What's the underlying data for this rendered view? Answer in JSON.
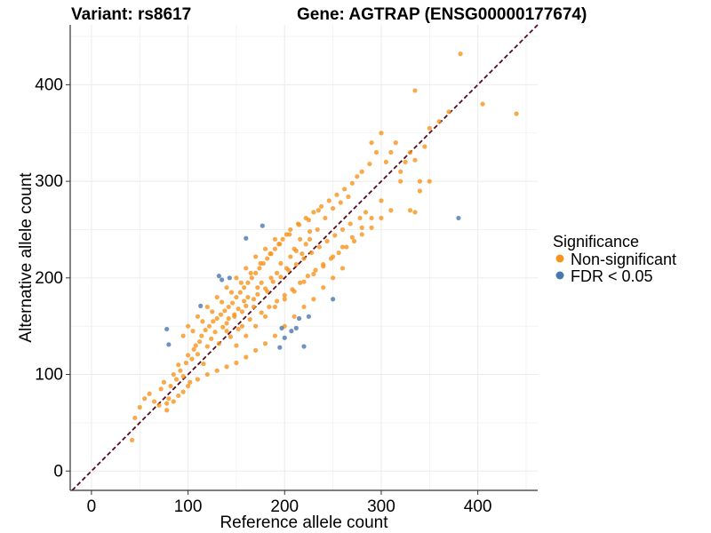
{
  "header": {
    "variant_text": "Variant: rs8617",
    "gene_text": "Gene: AGTRAP (ENSG00000177674)"
  },
  "colors": {
    "non_significant": "#F7941D",
    "significant": "#4A78AE",
    "diagonal": "#5A0A1E",
    "grid": "#EBEBEB",
    "axis": "#333333"
  },
  "chart_data": {
    "type": "scatter",
    "title": "",
    "xlabel": "Reference allele count",
    "ylabel": "Alternative allele count",
    "xlim": [
      -22,
      462
    ],
    "ylim": [
      -20,
      462
    ],
    "xticks": [
      0,
      100,
      200,
      300,
      400
    ],
    "yticks": [
      0,
      100,
      200,
      300,
      400
    ],
    "grid": true,
    "reference_line": {
      "slope": 1,
      "intercept": 0,
      "style": "dashed"
    },
    "legend": {
      "title": "Significance",
      "position": "right",
      "entries": [
        {
          "label": "Non-significant",
          "color": "#F7941D"
        },
        {
          "label": "FDR < 0.05",
          "color": "#4A78AE"
        }
      ]
    },
    "series": [
      {
        "name": "Non-significant",
        "color": "#F7941D",
        "points": [
          [
            42,
            32
          ],
          [
            45,
            55
          ],
          [
            50,
            66
          ],
          [
            55,
            75
          ],
          [
            60,
            80
          ],
          [
            65,
            72
          ],
          [
            70,
            68
          ],
          [
            72,
            85
          ],
          [
            75,
            92
          ],
          [
            78,
            63
          ],
          [
            80,
            75
          ],
          [
            82,
            88
          ],
          [
            85,
            100
          ],
          [
            88,
            95
          ],
          [
            90,
            110
          ],
          [
            92,
            104
          ],
          [
            95,
            98
          ],
          [
            98,
            112
          ],
          [
            100,
            120
          ],
          [
            102,
            92
          ],
          [
            104,
            116
          ],
          [
            106,
            126
          ],
          [
            108,
            130
          ],
          [
            110,
            121
          ],
          [
            112,
            134
          ],
          [
            114,
            140
          ],
          [
            116,
            111
          ],
          [
            118,
            146
          ],
          [
            120,
            129
          ],
          [
            122,
            150
          ],
          [
            124,
            137
          ],
          [
            126,
            155
          ],
          [
            128,
            144
          ],
          [
            130,
            158
          ],
          [
            132,
            132
          ],
          [
            134,
            162
          ],
          [
            136,
            149
          ],
          [
            138,
            166
          ],
          [
            140,
            153
          ],
          [
            142,
            170
          ],
          [
            144,
            139
          ],
          [
            146,
            174
          ],
          [
            148,
            160
          ],
          [
            150,
            180
          ],
          [
            152,
            147
          ],
          [
            154,
            185
          ],
          [
            156,
            165
          ],
          [
            158,
            190
          ],
          [
            160,
            171
          ],
          [
            162,
            195
          ],
          [
            164,
            157
          ],
          [
            166,
            200
          ],
          [
            168,
            178
          ],
          [
            170,
            205
          ],
          [
            172,
            183
          ],
          [
            174,
            210
          ],
          [
            176,
            164
          ],
          [
            178,
            215
          ],
          [
            180,
            189
          ],
          [
            182,
            220
          ],
          [
            184,
            170
          ],
          [
            186,
            225
          ],
          [
            188,
            196
          ],
          [
            190,
            230
          ],
          [
            192,
            176
          ],
          [
            194,
            235
          ],
          [
            196,
            201
          ],
          [
            198,
            240
          ],
          [
            200,
            182
          ],
          [
            202,
            245
          ],
          [
            204,
            208
          ],
          [
            206,
            250
          ],
          [
            208,
            188
          ],
          [
            210,
            230
          ],
          [
            212,
            214
          ],
          [
            214,
            256
          ],
          [
            216,
            195
          ],
          [
            218,
            225
          ],
          [
            220,
            220
          ],
          [
            222,
            262
          ],
          [
            224,
            202
          ],
          [
            226,
            240
          ],
          [
            228,
            226
          ],
          [
            230,
            268
          ],
          [
            232,
            208
          ],
          [
            234,
            250
          ],
          [
            236,
            232
          ],
          [
            238,
            274
          ],
          [
            240,
            214
          ],
          [
            242,
            262
          ],
          [
            244,
            238
          ],
          [
            246,
            280
          ],
          [
            248,
            220
          ],
          [
            250,
            272
          ],
          [
            252,
            244
          ],
          [
            254,
            286
          ],
          [
            256,
            226
          ],
          [
            258,
            278
          ],
          [
            260,
            250
          ],
          [
            262,
            292
          ],
          [
            264,
            232
          ],
          [
            266,
            284
          ],
          [
            268,
            256
          ],
          [
            270,
            298
          ],
          [
            272,
            238
          ],
          [
            275,
            305
          ],
          [
            278,
            262
          ],
          [
            280,
            310
          ],
          [
            284,
            268
          ],
          [
            288,
            318
          ],
          [
            290,
            340
          ],
          [
            295,
            330
          ],
          [
            300,
            350
          ],
          [
            305,
            320
          ],
          [
            310,
            330
          ],
          [
            315,
            340
          ],
          [
            320,
            310
          ],
          [
            325,
            320
          ],
          [
            330,
            330
          ],
          [
            335,
            322
          ],
          [
            340,
            300
          ],
          [
            345,
            336
          ],
          [
            350,
            355
          ],
          [
            360,
            362
          ],
          [
            370,
            372
          ],
          [
            382,
            432
          ],
          [
            405,
            380
          ],
          [
            440,
            370
          ],
          [
            335,
            394
          ],
          [
            320,
            300
          ],
          [
            330,
            270
          ],
          [
            340,
            290
          ],
          [
            300,
            280
          ],
          [
            310,
            270
          ],
          [
            350,
            300
          ],
          [
            335,
            268
          ],
          [
            280,
            245
          ],
          [
            290,
            252
          ],
          [
            300,
            262
          ],
          [
            260,
            210
          ],
          [
            240,
            190
          ],
          [
            250,
            200
          ],
          [
            230,
            178
          ],
          [
            220,
            170
          ],
          [
            210,
            160
          ],
          [
            200,
            150
          ],
          [
            190,
            140
          ],
          [
            180,
            132
          ],
          [
            170,
            125
          ],
          [
            160,
            118
          ],
          [
            150,
            112
          ],
          [
            140,
            108
          ],
          [
            130,
            104
          ],
          [
            120,
            100
          ],
          [
            110,
            95
          ],
          [
            100,
            88
          ],
          [
            95,
            82
          ],
          [
            90,
            78
          ],
          [
            85,
            72
          ],
          [
            78,
            70
          ],
          [
            130,
            180
          ],
          [
            140,
            190
          ],
          [
            150,
            200
          ],
          [
            160,
            210
          ],
          [
            170,
            222
          ],
          [
            180,
            230
          ],
          [
            190,
            240
          ],
          [
            120,
            170
          ],
          [
            110,
            160
          ],
          [
            100,
            150
          ],
          [
            95,
            140
          ],
          [
            105,
            145
          ],
          [
            115,
            155
          ],
          [
            125,
            165
          ],
          [
            135,
            175
          ],
          [
            145,
            185
          ],
          [
            155,
            195
          ],
          [
            165,
            205
          ],
          [
            175,
            215
          ],
          [
            185,
            225
          ],
          [
            195,
            235
          ],
          [
            205,
            245
          ],
          [
            215,
            255
          ],
          [
            225,
            260
          ],
          [
            235,
            270
          ],
          [
            150,
            130
          ],
          [
            160,
            140
          ],
          [
            170,
            150
          ],
          [
            180,
            160
          ],
          [
            190,
            170
          ],
          [
            200,
            178
          ],
          [
            210,
            186
          ],
          [
            220,
            196
          ],
          [
            230,
            204
          ],
          [
            240,
            212
          ],
          [
            250,
            222
          ],
          [
            260,
            232
          ],
          [
            270,
            242
          ],
          [
            280,
            252
          ],
          [
            290,
            262
          ],
          [
            140,
            145
          ],
          [
            142,
            158
          ],
          [
            148,
            162
          ],
          [
            152,
            168
          ],
          [
            156,
            150
          ],
          [
            158,
            176
          ],
          [
            162,
            180
          ],
          [
            168,
            170
          ],
          [
            172,
            190
          ],
          [
            176,
            195
          ],
          [
            182,
            186
          ],
          [
            186,
            200
          ],
          [
            192,
            205
          ],
          [
            196,
            215
          ],
          [
            202,
            210
          ],
          [
            206,
            222
          ],
          [
            212,
            228
          ],
          [
            216,
            240
          ],
          [
            222,
            235
          ],
          [
            226,
            248
          ]
        ]
      },
      {
        "name": "FDR < 0.05",
        "color": "#4A78AE",
        "points": [
          [
            78,
            147
          ],
          [
            80,
            131
          ],
          [
            113,
            171
          ],
          [
            132,
            202
          ],
          [
            135,
            198
          ],
          [
            143,
            200
          ],
          [
            160,
            241
          ],
          [
            177,
            254
          ],
          [
            195,
            128
          ],
          [
            197,
            148
          ],
          [
            200,
            138
          ],
          [
            207,
            145
          ],
          [
            212,
            148
          ],
          [
            215,
            158
          ],
          [
            220,
            129
          ],
          [
            225,
            160
          ],
          [
            250,
            178
          ],
          [
            380,
            262
          ]
        ]
      }
    ]
  }
}
